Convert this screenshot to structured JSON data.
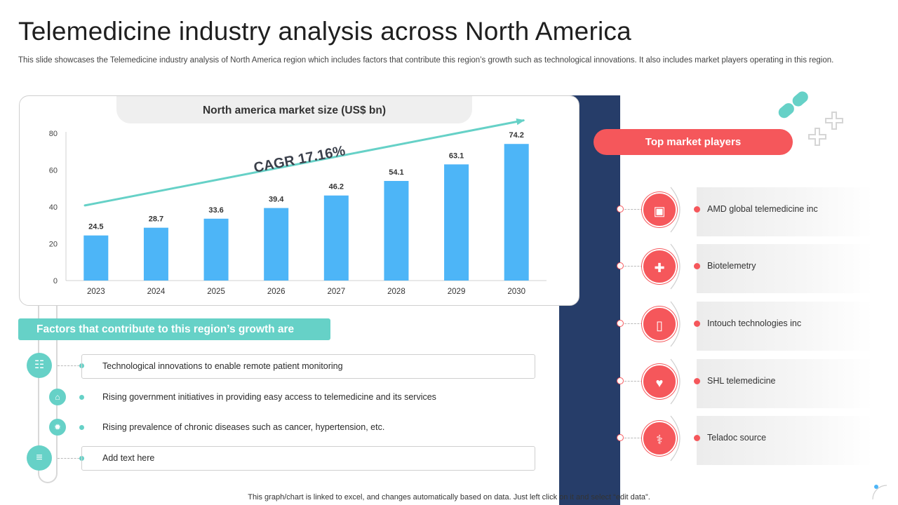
{
  "title": "Telemedicine industry analysis across North America",
  "subtitle": "This slide showcases the Telemedicine industry analysis of North America region which includes factors that contribute this region’s growth such as technological innovations. It also includes market players operating in this region.",
  "chart_data": {
    "type": "bar",
    "title": "North america market size (US$ bn)",
    "categories": [
      "2023",
      "2024",
      "2025",
      "2026",
      "2027",
      "2028",
      "2029",
      "2030"
    ],
    "values": [
      24.5,
      28.7,
      33.6,
      39.4,
      46.2,
      54.1,
      63.1,
      74.2
    ],
    "ylim": [
      0,
      80
    ],
    "yticks": [
      0,
      20,
      40,
      60,
      80
    ],
    "annotation": "CAGR 17.16%",
    "bar_color": "#4db5f7",
    "trend_color": "#66d1c7"
  },
  "factors": {
    "heading": "Factors that contribute to this region’s growth are",
    "items": [
      {
        "text": "Technological  innovations  to enable  remote  patient  monitoring",
        "icon": "network-icon"
      },
      {
        "text": "Rising government initiatives in providing easy access to telemedicine and its services",
        "icon": "government-icon"
      },
      {
        "text": "Rising prevalence of chronic diseases such as cancer, hypertension, etc.",
        "icon": "virus-icon"
      },
      {
        "text": "Add text here",
        "icon": "document-icon"
      }
    ]
  },
  "players": {
    "heading": "Top market players",
    "items": [
      {
        "name": "AMD global telemedicine inc",
        "icon": "monitor-icon"
      },
      {
        "name": "Biotelemetry",
        "icon": "health-shield-icon"
      },
      {
        "name": "Intouch technologies inc",
        "icon": "mobile-health-icon"
      },
      {
        "name": "SHL telemedicine",
        "icon": "laptop-health-icon"
      },
      {
        "name": "Teladoc  source",
        "icon": "stethoscope-icon"
      }
    ]
  },
  "colors": {
    "navy": "#263d69",
    "teal": "#66d1c7",
    "red": "#f5575b",
    "blue": "#4db5f7"
  },
  "footnote": "This graph/chart is linked to excel,  and changes automatically based on data. Just left click on it and select “edit data”."
}
